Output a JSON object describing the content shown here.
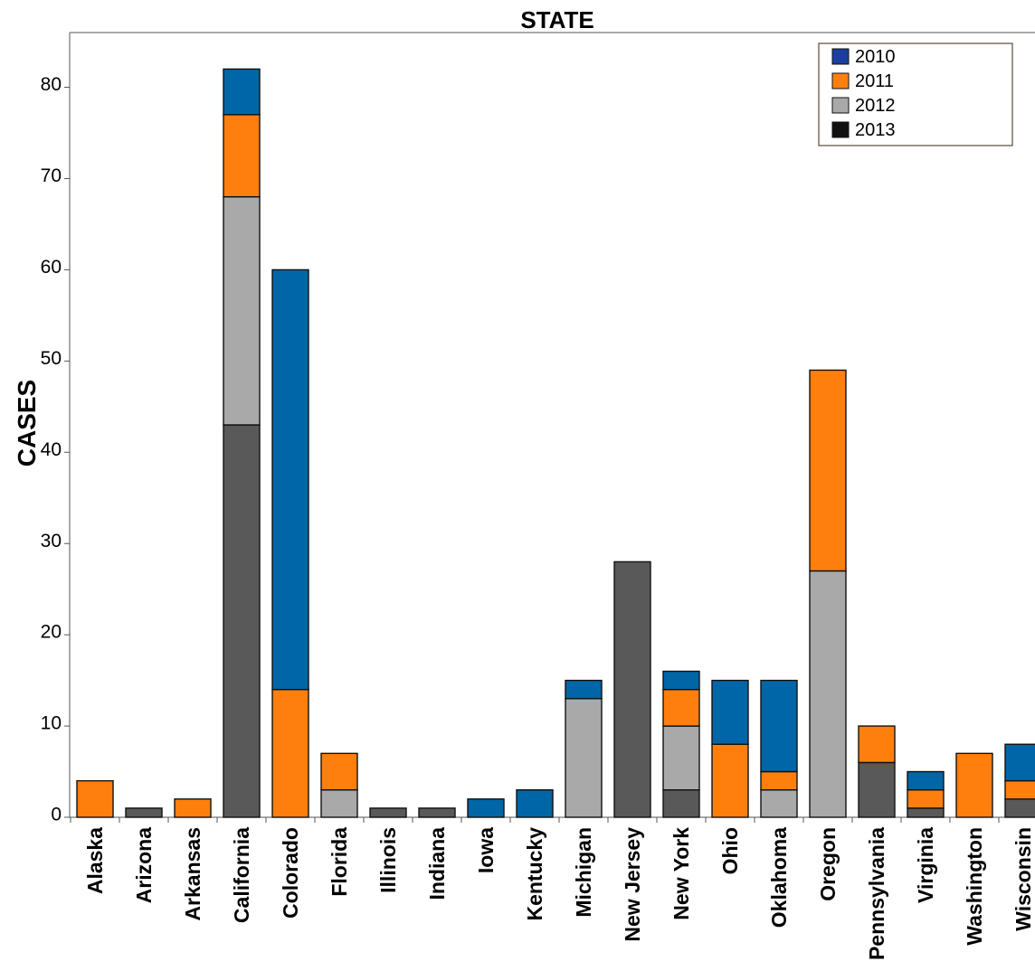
{
  "chart_data": {
    "type": "bar",
    "stacked": true,
    "title": "STATE",
    "xlabel": "",
    "ylabel": "CASES",
    "ylim": [
      0,
      86
    ],
    "yticks": [
      0,
      10,
      20,
      30,
      40,
      50,
      60,
      70,
      80
    ],
    "grid": false,
    "legend_position": "top-right",
    "categories": [
      "Alaska",
      "Arizona",
      "Arkansas",
      "California",
      "Colorado",
      "Florida",
      "Illinois",
      "Indiana",
      "Iowa",
      "Kentucky",
      "Michigan",
      "New Jersey",
      "New York",
      "Ohio",
      "Oklahoma",
      "Oregon",
      "Pennsylvania",
      "Virginia",
      "Washington",
      "Wisconsin"
    ],
    "stack_order": [
      "2013",
      "2012",
      "2011",
      "2010"
    ],
    "series": [
      {
        "name": "2010",
        "color": "#0066a6",
        "legend_color": "#1a3fa0",
        "values": [
          0,
          0,
          0,
          5,
          46,
          0,
          0,
          0,
          2,
          3,
          2,
          0,
          2,
          7,
          10,
          0,
          0,
          2,
          0,
          4
        ]
      },
      {
        "name": "2011",
        "color": "#ff7f0e",
        "legend_color": "#ff7f0e",
        "values": [
          4,
          0,
          2,
          9,
          14,
          4,
          0,
          0,
          0,
          0,
          0,
          0,
          4,
          8,
          2,
          22,
          4,
          2,
          7,
          2
        ]
      },
      {
        "name": "2012",
        "color": "#a9a9a9",
        "legend_color": "#a9a9a9",
        "values": [
          0,
          0,
          0,
          25,
          0,
          3,
          0,
          0,
          0,
          0,
          13,
          0,
          7,
          0,
          3,
          27,
          0,
          0,
          0,
          0
        ]
      },
      {
        "name": "2013",
        "color": "#595959",
        "legend_color": "#111111",
        "values": [
          0,
          1,
          0,
          43,
          0,
          0,
          1,
          1,
          0,
          0,
          0,
          28,
          3,
          0,
          0,
          0,
          6,
          1,
          0,
          2
        ]
      }
    ]
  }
}
